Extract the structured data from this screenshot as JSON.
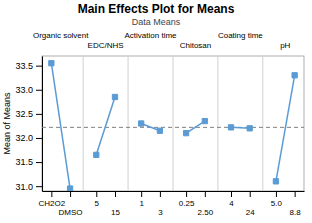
{
  "chart_data": {
    "type": "line",
    "title": "Main Effects Plot for Means",
    "subtitle": "Data Means",
    "ylabel": "Mean of Means",
    "categories": [
      "CH2O2",
      "DMSO",
      "5",
      "15",
      "1",
      "3",
      "0.25",
      "2.50",
      "4",
      "24",
      "5.0",
      "8.8"
    ],
    "series": [
      {
        "name": "Organic solvent",
        "values": [
          33.55,
          30.95,
          null,
          null,
          null,
          null,
          null,
          null,
          null,
          null,
          null,
          null
        ]
      },
      {
        "name": "EDC/NHS",
        "values": [
          null,
          null,
          31.65,
          32.85,
          null,
          null,
          null,
          null,
          null,
          null,
          null,
          null
        ]
      },
      {
        "name": "Activation time",
        "values": [
          null,
          null,
          null,
          null,
          32.3,
          32.15,
          null,
          null,
          null,
          null,
          null,
          null
        ]
      },
      {
        "name": "Chitosan",
        "values": [
          null,
          null,
          null,
          null,
          null,
          null,
          32.1,
          32.35,
          null,
          null,
          null,
          null
        ]
      },
      {
        "name": "Coating time",
        "values": [
          null,
          null,
          null,
          null,
          null,
          null,
          null,
          null,
          32.22,
          32.2,
          null,
          null
        ]
      },
      {
        "name": "pH",
        "values": [
          null,
          null,
          null,
          null,
          null,
          null,
          null,
          null,
          null,
          null,
          31.1,
          33.3
        ]
      }
    ],
    "grand_mean": 32.22,
    "ylim": [
      30.9,
      33.7
    ],
    "yticks": [
      {
        "value": 31.0,
        "label": "31.0"
      },
      31.5,
      {
        "value": 32.0,
        "label": "32.0"
      },
      32.5,
      {
        "value": 33.0,
        "label": "33.0"
      },
      33.5
    ],
    "color": "#5b9bd5",
    "marker": "square",
    "grid": false
  }
}
